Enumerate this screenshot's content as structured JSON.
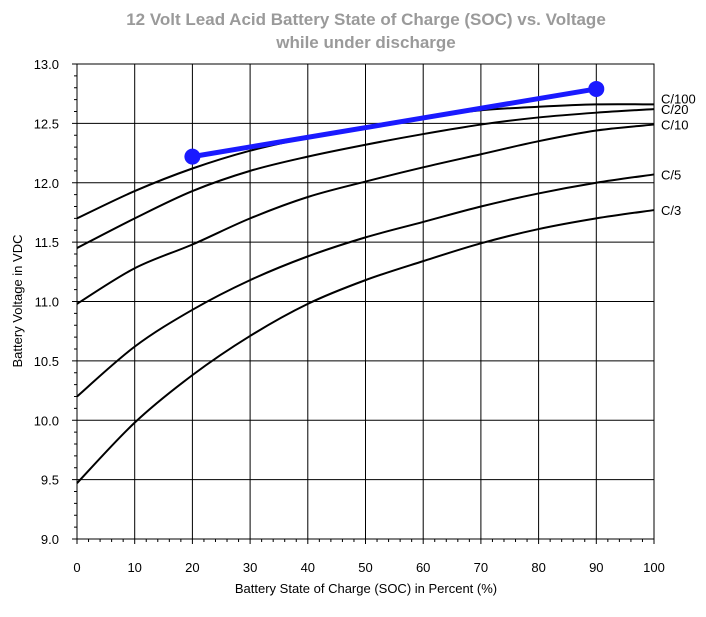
{
  "chart_data": {
    "type": "line",
    "title": "12 Volt Lead Acid Battery State of Charge (SOC) vs. Voltage",
    "subtitle": "while under discharge",
    "xlabel": "Battery State of Charge (SOC) in Percent (%)",
    "ylabel": "Battery Voltage in VDC",
    "xlim": [
      0,
      100
    ],
    "ylim": [
      9.0,
      13.0
    ],
    "x_ticks": [
      "0",
      "10",
      "20",
      "30",
      "40",
      "50",
      "60",
      "70",
      "80",
      "90",
      "100"
    ],
    "y_ticks": [
      "9.0",
      "9.5",
      "10.0",
      "10.5",
      "11.0",
      "11.5",
      "12.0",
      "12.5",
      "13.0"
    ],
    "grid": true,
    "x": [
      0,
      10,
      20,
      30,
      40,
      50,
      60,
      70,
      80,
      90,
      100
    ],
    "series": [
      {
        "name": "C/100",
        "values": [
          11.7,
          11.93,
          12.12,
          12.27,
          12.38,
          12.47,
          12.55,
          12.61,
          12.64,
          12.66,
          12.66
        ],
        "color": "#000000"
      },
      {
        "name": "C/20",
        "values": [
          11.45,
          11.7,
          11.93,
          12.1,
          12.22,
          12.32,
          12.41,
          12.49,
          12.55,
          12.59,
          12.62
        ],
        "color": "#000000"
      },
      {
        "name": "C/10",
        "values": [
          10.98,
          11.28,
          11.48,
          11.7,
          11.88,
          12.01,
          12.13,
          12.24,
          12.35,
          12.44,
          12.49
        ],
        "color": "#000000"
      },
      {
        "name": "C/5",
        "values": [
          10.2,
          10.62,
          10.93,
          11.18,
          11.38,
          11.54,
          11.67,
          11.8,
          11.91,
          12.0,
          12.07
        ],
        "color": "#000000"
      },
      {
        "name": "C/3",
        "values": [
          9.47,
          9.98,
          10.38,
          10.71,
          10.98,
          11.18,
          11.34,
          11.49,
          11.61,
          11.7,
          11.77
        ],
        "color": "#000000"
      }
    ],
    "highlight_line": {
      "color": "#1a1aff",
      "points": [
        {
          "x": 20,
          "y": 12.22
        },
        {
          "x": 90,
          "y": 12.79
        }
      ]
    }
  }
}
